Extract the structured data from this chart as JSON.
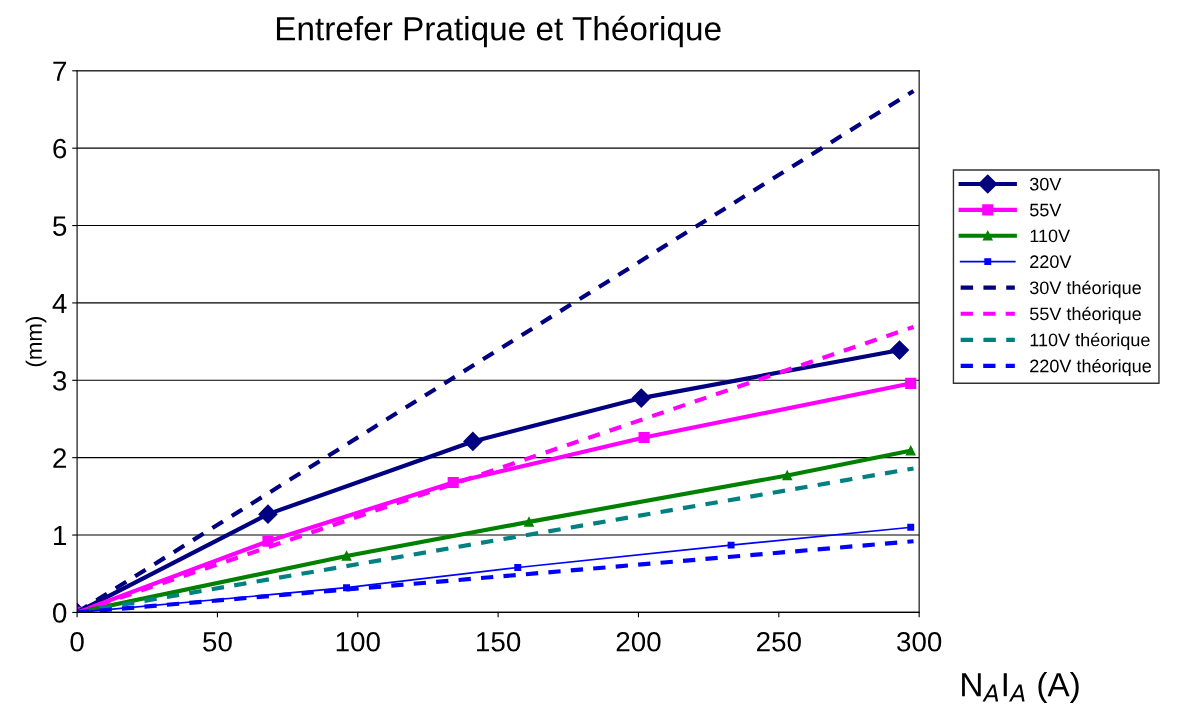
{
  "chart_data": {
    "type": "line",
    "title": "Entrefer Pratique et Théorique",
    "xlabel": "N$_{A}$I$_{A}$ (A)",
    "ylabel": "(mm)",
    "xlim": [
      0,
      300
    ],
    "xticks": [
      0,
      50,
      100,
      150,
      200,
      250,
      300
    ],
    "ylim": [
      0,
      7
    ],
    "yticks": [
      0,
      1,
      2,
      3,
      4,
      5,
      6,
      7
    ],
    "grid": "y",
    "legend": "right",
    "series": [
      {
        "name": "30V",
        "color": "#000080",
        "marker": "diamond",
        "line_style": "solid",
        "x": [
          0,
          68,
          141,
          201,
          293
        ],
        "values": [
          0,
          1.27,
          2.21,
          2.77,
          3.39
        ]
      },
      {
        "name": "55V",
        "color": "#ff00ff",
        "marker": "square",
        "line_style": "solid",
        "x": [
          0,
          68,
          134,
          202,
          297
        ],
        "values": [
          0,
          0.92,
          1.68,
          2.26,
          2.96
        ]
      },
      {
        "name": "110V",
        "color": "#008000",
        "marker": "triangle",
        "line_style": "solid",
        "x": [
          0,
          96,
          161,
          253,
          297
        ],
        "values": [
          0,
          0.73,
          1.17,
          1.77,
          2.09
        ]
      },
      {
        "name": "220V",
        "color": "#0000ff",
        "marker": "square",
        "line_style": "solid",
        "x": [
          0,
          96,
          157,
          233,
          297
        ],
        "values": [
          0,
          0.32,
          0.58,
          0.87,
          1.1
        ]
      },
      {
        "name": "30V théorique",
        "color": "#000080",
        "marker": "none",
        "line_style": "dashed",
        "x": [
          0,
          298
        ],
        "values": [
          0,
          6.74
        ]
      },
      {
        "name": "55V théorique",
        "color": "#ff00ff",
        "marker": "none",
        "line_style": "dashed",
        "x": [
          0,
          298
        ],
        "values": [
          0,
          3.69
        ]
      },
      {
        "name": "110V théorique",
        "color": "#008080",
        "marker": "none",
        "line_style": "dashed",
        "x": [
          0,
          298
        ],
        "values": [
          0,
          1.86
        ]
      },
      {
        "name": "220V théorique",
        "color": "#0000ff",
        "marker": "none",
        "line_style": "dashed",
        "x": [
          0,
          298
        ],
        "values": [
          0,
          0.92
        ]
      }
    ]
  }
}
